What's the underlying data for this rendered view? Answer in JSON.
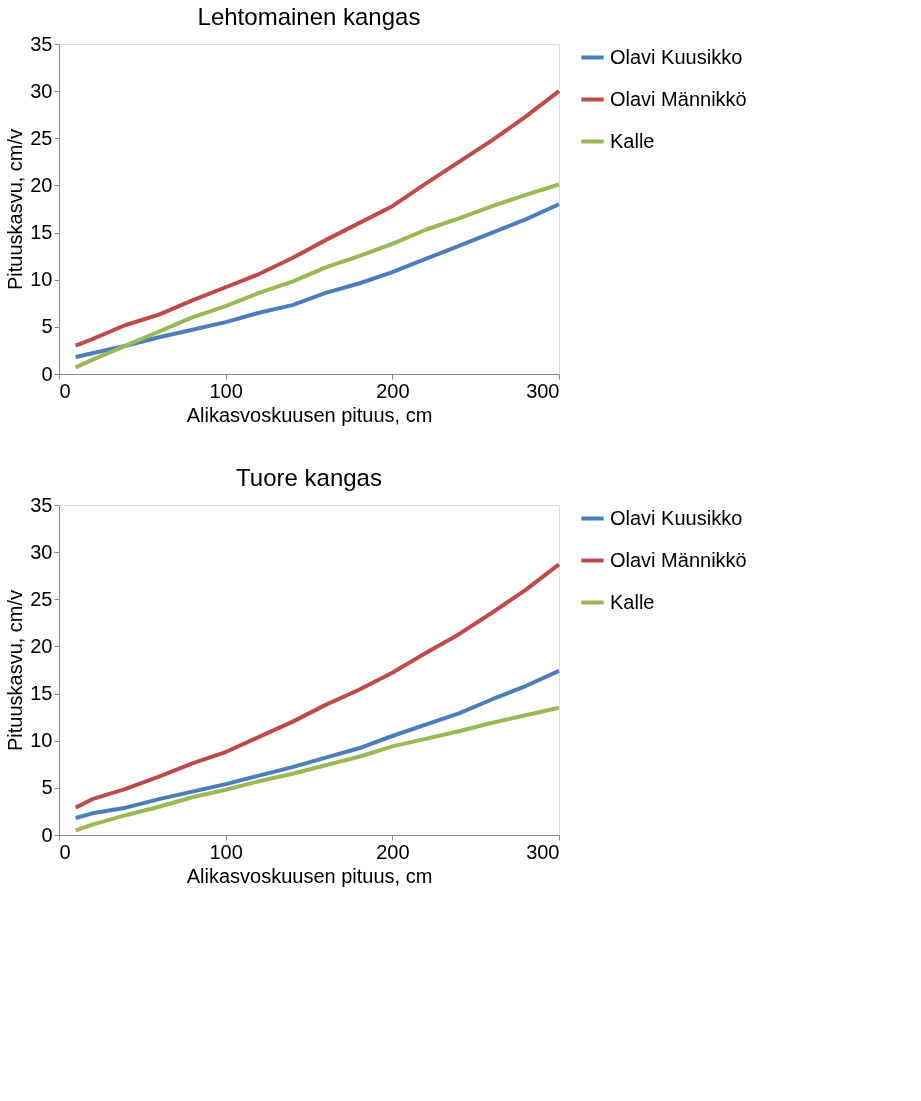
{
  "chart_data": [
    {
      "type": "line",
      "title": "Lehtomainen kangas",
      "xlabel": "Alikasvoskuusen pituus, cm",
      "ylabel": "Pituuskasvu, cm/v",
      "x": [
        10,
        20,
        40,
        60,
        80,
        100,
        120,
        140,
        160,
        180,
        200,
        220,
        240,
        260,
        280,
        300
      ],
      "xlim": [
        0,
        300
      ],
      "xticks": [
        0,
        100,
        200,
        300
      ],
      "ylim": [
        0,
        35
      ],
      "yticks": [
        0,
        5,
        10,
        15,
        20,
        25,
        30,
        35
      ],
      "grid": false,
      "legend": "right",
      "marker": "none",
      "line_style": "solid",
      "series": [
        {
          "name": "Olavi Kuusikko",
          "color": "#4a7ebb",
          "values": [
            1.8,
            2.2,
            3,
            3.9,
            4.7,
            5.5,
            6.5,
            7.3,
            8.6,
            9.6,
            10.8,
            12.2,
            13.6,
            15,
            16.4,
            18
          ]
        },
        {
          "name": "Olavi Männikkö",
          "color": "#be4b48",
          "values": [
            3,
            3.7,
            5.2,
            6.3,
            7.8,
            9.2,
            10.6,
            12.3,
            14.2,
            16,
            17.8,
            20.2,
            22.5,
            24.8,
            27.3,
            30
          ]
        },
        {
          "name": "Kalle",
          "color": "#98b954",
          "values": [
            0.7,
            1.5,
            3,
            4.5,
            6,
            7.2,
            8.6,
            9.8,
            11.3,
            12.5,
            13.8,
            15.3,
            16.5,
            17.8,
            19,
            20.1
          ]
        }
      ]
    },
    {
      "type": "line",
      "title": "Tuore kangas",
      "xlabel": "Alikasvoskuusen pituus, cm",
      "ylabel": "Pituuskasvu, cm/v",
      "x": [
        10,
        20,
        40,
        60,
        80,
        100,
        120,
        140,
        160,
        180,
        200,
        220,
        240,
        260,
        280,
        300
      ],
      "xlim": [
        0,
        300
      ],
      "xticks": [
        0,
        100,
        200,
        300
      ],
      "ylim": [
        0,
        35
      ],
      "yticks": [
        0,
        5,
        10,
        15,
        20,
        25,
        30,
        35
      ],
      "grid": false,
      "legend": "right",
      "marker": "none",
      "line_style": "solid",
      "series": [
        {
          "name": "Olavi Kuusikko",
          "color": "#4a7ebb",
          "values": [
            1.8,
            2.3,
            2.9,
            3.8,
            4.6,
            5.4,
            6.3,
            7.2,
            8.2,
            9.2,
            10.5,
            11.7,
            12.9,
            14.4,
            15.8,
            17.4
          ]
        },
        {
          "name": "Olavi Männikkö",
          "color": "#be4b48",
          "values": [
            2.9,
            3.8,
            4.9,
            6.2,
            7.6,
            8.8,
            10.4,
            12,
            13.8,
            15.4,
            17.2,
            19.3,
            21.3,
            23.6,
            26,
            28.7
          ]
        },
        {
          "name": "Kalle",
          "color": "#98b954",
          "values": [
            0.5,
            1.1,
            2.1,
            3,
            4,
            4.8,
            5.7,
            6.5,
            7.4,
            8.3,
            9.4,
            10.2,
            11,
            11.9,
            12.7,
            13.5
          ]
        }
      ]
    }
  ]
}
